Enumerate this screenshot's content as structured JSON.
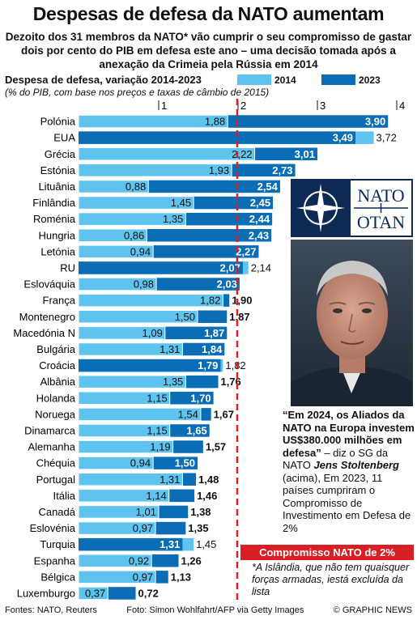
{
  "header": {
    "title": "Despesas de defesa da NATO aumentam",
    "subtitle": "Dezoito dos 31 membros da NATO* vão cumprir o seu compromisso de gastar dois por cento do PIB em defesa este ano – uma decisão tomada após a anexação da Crimeia pela Rússia em 2014"
  },
  "colors": {
    "c2014": "#5ec3ee",
    "c2023": "#0a6db5",
    "target": "#d81f26",
    "navy": "#0c2a54"
  },
  "chart_data": {
    "type": "bar",
    "title": "Despesa de defesa, variação 2014-2023",
    "subtitle": "(% do PIB, com base nos preços e taxas de câmbio de 2015)",
    "x_ticks": [
      "1",
      "2",
      "3",
      "4"
    ],
    "xlim": [
      0,
      4
    ],
    "reference_line": 2,
    "series": [
      {
        "name": "2014",
        "values": [
          1.88,
          3.72,
          2.22,
          1.93,
          0.88,
          1.45,
          1.35,
          0.86,
          0.94,
          2.14,
          0.98,
          1.82,
          1.5,
          1.09,
          1.31,
          1.82,
          1.35,
          1.15,
          1.54,
          1.15,
          1.19,
          0.94,
          1.31,
          1.14,
          1.01,
          0.97,
          1.45,
          0.92,
          0.97,
          0.37
        ]
      },
      {
        "name": "2023",
        "values": [
          3.9,
          3.49,
          3.01,
          2.73,
          2.54,
          2.45,
          2.44,
          2.43,
          2.27,
          2.07,
          2.03,
          1.9,
          1.87,
          1.87,
          1.84,
          1.79,
          1.76,
          1.7,
          1.67,
          1.65,
          1.57,
          1.5,
          1.48,
          1.46,
          1.38,
          1.35,
          1.31,
          1.26,
          1.13,
          0.72
        ]
      }
    ],
    "categories": [
      "Polónia",
      "EUA",
      "Grécia",
      "Estónia",
      "Lituânia",
      "Finlândia",
      "Roménia",
      "Hungria",
      "Letónia",
      "RU",
      "Eslováquia",
      "França",
      "Montenegro",
      "Macedónia N",
      "Bulgária",
      "Croácia",
      "Albânia",
      "Holanda",
      "Noruega",
      "Dinamarca",
      "Alemanha",
      "Chéquia",
      "Portugal",
      "Itália",
      "Canadá",
      "Eslovénia",
      "Turquia",
      "Espanha",
      "Bélgica",
      "Luxemburgo"
    ],
    "labels_2014": [
      "1,88",
      "3,72",
      "2,22",
      "1,93",
      "0,88",
      "1,45",
      "1,35",
      "0,86",
      "0,94",
      "2,14",
      "0,98",
      "1,82",
      "1,50",
      "1,09",
      "1,31",
      "1,82",
      "1,35",
      "1,15",
      "1,54",
      "1,15",
      "1,19",
      "0,94",
      "1,31",
      "1,14",
      "1,01",
      "0,97",
      "1,45",
      "0,92",
      "0,97",
      "0,37"
    ],
    "labels_2023": [
      "3,90",
      "3,49",
      "3,01",
      "2,73",
      "2,54",
      "2,45",
      "2,44",
      "2,43",
      "2,27",
      "2,07",
      "2,03",
      "1,90",
      "1,87",
      "1,87",
      "1,84",
      "1,79",
      "1,76",
      "1,70",
      "1,67",
      "1,65",
      "1,57",
      "1,50",
      "1,48",
      "1,46",
      "1,38",
      "1,35",
      "1,31",
      "1,26",
      "1,13",
      "0,72"
    ]
  },
  "logo": {
    "top": "NATO",
    "bottom": "OTAN"
  },
  "quote": {
    "bold_text": "“Em 2024, os Aliados da NATO na Europa investem US$380.000 milhões em defesa”",
    "attribution_pre": " – diz o SG da NATO ",
    "name": "Jens Stoltenberg",
    "attribution_post": " (acima), Em 2023, 11 países cumpriram o Compromisso de Investimento em Defesa de 2%"
  },
  "commitment_label": "Compromisso NATO de 2%",
  "footnote": "*A Islândia, que não tem quaisquer forças armadas, iestá excluída da lista",
  "footer": {
    "sources": "Fontes: NATO, Reuters",
    "photo_credit": "Foto:  Simon Wohlfahrt/AFP via Getty Images",
    "copyright": "© GRAPHIC NEWS"
  }
}
